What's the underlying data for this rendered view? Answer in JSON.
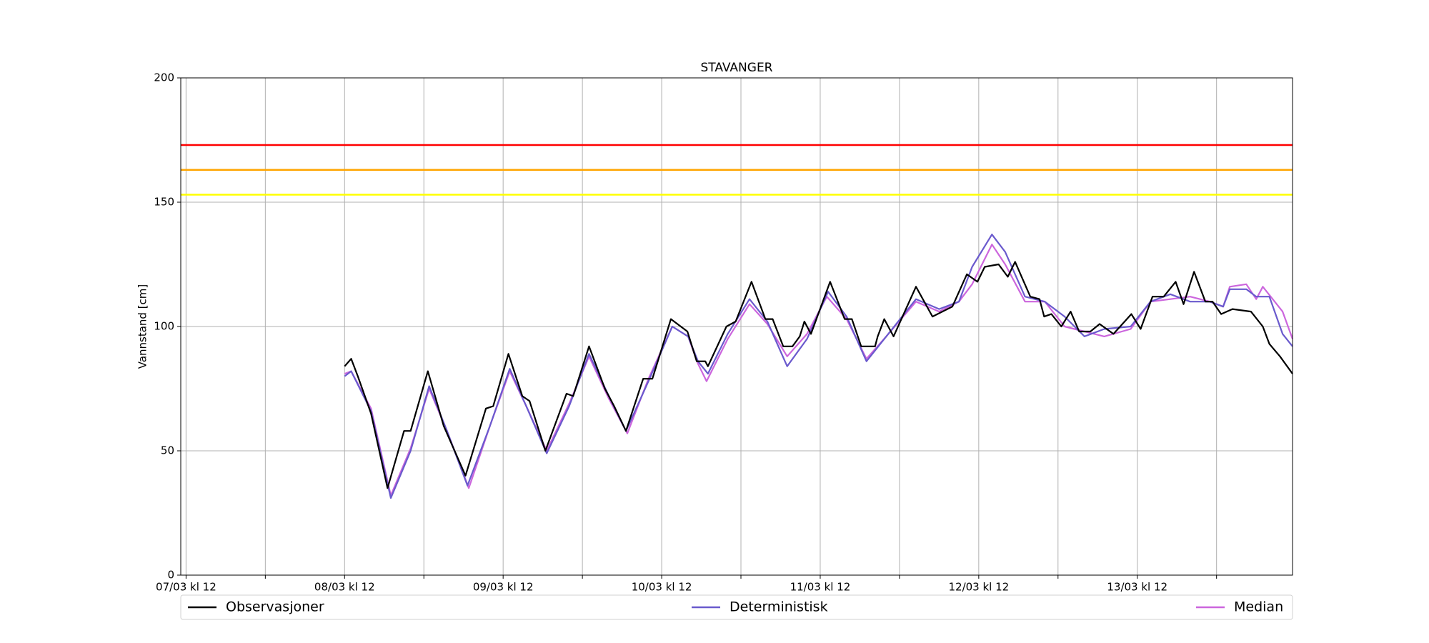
{
  "chart_data": {
    "type": "line",
    "title": "STAVANGER",
    "ylabel": "Vannstand [cm]",
    "xlim": [
      11.2,
      179.5
    ],
    "ylim": [
      0,
      200
    ],
    "yticks": [
      0,
      50,
      100,
      150,
      200
    ],
    "xticks": [
      {
        "value": 12,
        "label": "07/03 kl 12"
      },
      {
        "value": 36,
        "label": "08/03 kl 12"
      },
      {
        "value": 60,
        "label": "09/03 kl 12"
      },
      {
        "value": 84,
        "label": "10/03 kl 12"
      },
      {
        "value": 108,
        "label": "11/03 kl 12"
      },
      {
        "value": 132,
        "label": "12/03 kl 12"
      },
      {
        "value": 156,
        "label": "13/03 kl 12"
      }
    ],
    "xminor_ticks": [
      24,
      48,
      72,
      96,
      120,
      144,
      168
    ],
    "grid": true,
    "thresholds": [
      {
        "value": 173,
        "color": "#ff0000"
      },
      {
        "value": 163,
        "color": "#ffa500"
      },
      {
        "value": 153,
        "color": "#ffff00"
      }
    ],
    "series": [
      {
        "name": "Observasjoner",
        "color": "#000000",
        "x": [
          36,
          37,
          38,
          40,
          42.5,
          45,
          46,
          48.6,
          51,
          54.3,
          57.4,
          58.5,
          60.8,
          62.9,
          64,
          66.4,
          69.6,
          70.6,
          73,
          75.4,
          76.8,
          78.6,
          81.2,
          82.6,
          85.4,
          87.9,
          89.3,
          90.6,
          91,
          93.8,
          95.2,
          97.6,
          99.7,
          100.8,
          102.4,
          103.8,
          104.9,
          105.6,
          106.6,
          109.5,
          111.7,
          112.8,
          114.2,
          116.3,
          116.7,
          117.7,
          119.1,
          122.5,
          125,
          128,
          130.2,
          131.8,
          132.9,
          135,
          136.4,
          137.5,
          139.8,
          141.2,
          141.9,
          143,
          144.5,
          145.9,
          147.2,
          148.9,
          150.3,
          152.4,
          155.1,
          156.5,
          158.3,
          160,
          161.8,
          163,
          164.6,
          166.3,
          167.4,
          168.7,
          170.4,
          173.2,
          175,
          176,
          177.6,
          179.5
        ],
        "values": [
          84,
          87,
          80,
          65,
          35,
          58,
          58,
          82,
          60,
          40,
          67,
          68,
          89,
          72,
          70,
          50,
          73,
          72,
          92,
          75,
          68,
          58,
          79,
          79,
          103,
          98,
          86,
          86,
          84,
          100,
          102,
          118,
          103,
          103,
          92,
          92,
          96,
          102,
          97,
          118,
          103,
          103,
          92,
          92,
          96,
          103,
          96,
          116,
          104,
          108,
          121,
          118,
          124,
          125,
          120,
          126,
          112,
          111,
          104,
          105,
          100,
          106,
          98,
          98,
          101,
          97,
          105,
          99,
          112,
          112,
          118,
          109,
          122,
          110,
          110,
          105,
          107,
          106,
          100,
          93,
          88,
          81
        ]
      },
      {
        "name": "Deterministisk",
        "color": "#6a5acd",
        "x": [
          36,
          37,
          40,
          43,
          46,
          48.8,
          51.5,
          54.6,
          58,
          61,
          63.5,
          66.6,
          70,
          73,
          76,
          78.6,
          82,
          85.6,
          88,
          89.5,
          91,
          94,
          97.3,
          100,
          103,
          106,
          109.2,
          112,
          115,
          118,
          122.5,
          126,
          129,
          131,
          134,
          136,
          139,
          142,
          145,
          148,
          151,
          155,
          158,
          161,
          164,
          167,
          169,
          170,
          172.5,
          174,
          176,
          178,
          179.5
        ],
        "values": [
          80,
          82,
          66,
          31,
          50,
          76,
          58,
          36,
          60,
          83,
          68,
          49,
          68,
          89,
          72,
          58,
          78,
          100,
          96,
          86,
          81,
          97,
          111,
          102,
          84,
          95,
          114,
          104,
          86,
          96,
          111,
          107,
          110,
          124,
          137,
          130,
          112,
          110,
          104,
          96,
          99,
          100,
          110,
          113,
          110,
          110,
          108,
          115,
          115,
          112,
          112,
          97,
          92
        ]
      },
      {
        "name": "Median",
        "color": "#cc66dd",
        "x": [
          36,
          37,
          40,
          43,
          46,
          48.8,
          51.5,
          54.8,
          58,
          61,
          63.5,
          66.6,
          70,
          73,
          76,
          78.8,
          82,
          85.6,
          88,
          89.5,
          90.8,
          94,
          97.3,
          100,
          103,
          106,
          109,
          112,
          115,
          118,
          122.5,
          126,
          129,
          131,
          134,
          136,
          139,
          142,
          145,
          148,
          151,
          155,
          158,
          161,
          164,
          167,
          169,
          170,
          172.5,
          174,
          175,
          178,
          179.5
        ],
        "values": [
          81,
          82,
          67,
          32,
          51,
          75,
          58,
          35,
          60,
          82,
          68,
          50,
          69,
          88,
          71,
          57,
          79,
          100,
          96,
          85,
          78,
          95,
          109,
          101,
          88,
          97,
          112,
          103,
          87,
          96,
          110,
          106,
          110,
          117,
          133,
          125,
          110,
          110,
          100,
          98,
          96,
          99,
          110,
          111,
          112,
          110,
          108,
          116,
          117,
          111,
          116,
          106,
          95
        ]
      }
    ]
  }
}
